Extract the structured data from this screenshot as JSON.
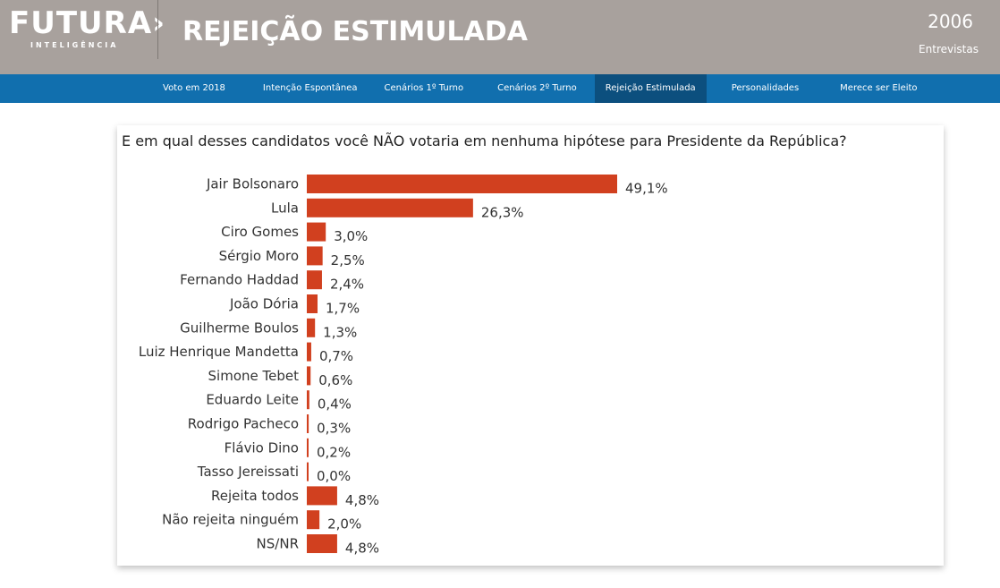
{
  "header": {
    "logo_text": "FUTURA›",
    "logo_subtext": "INTELIGÊNCIA",
    "title": "REJEIÇÃO ESTIMULADA",
    "interview_count": "2006",
    "interview_label": "Entrevistas"
  },
  "nav": {
    "items": [
      {
        "label": "Voto em 2018"
      },
      {
        "label": "Intenção Espontânea"
      },
      {
        "label": "Cenários 1º Turno"
      },
      {
        "label": "Cenários 2º Turno"
      },
      {
        "label": "Rejeição Estimulada",
        "active": true
      },
      {
        "label": "Personalidades"
      },
      {
        "label": "Merece ser Eleito"
      }
    ]
  },
  "colors": {
    "header_bg": "#a8a19d",
    "nav_bg": "#116fae",
    "nav_active_bg": "#0c4f7e",
    "bar": "#d1401f"
  },
  "chart_data": {
    "type": "bar",
    "orientation": "horizontal",
    "title": "E em qual desses candidatos você NÃO votaria em nenhuma hipótese para Presidente da República?",
    "categories": [
      "Jair Bolsonaro",
      "Lula",
      "Ciro Gomes",
      "Sérgio Moro",
      "Fernando Haddad",
      "João Dória",
      "Guilherme Boulos",
      "Luiz Henrique Mandetta",
      "Simone Tebet",
      "Eduardo Leite",
      "Rodrigo Pacheco",
      "Flávio Dino",
      "Tasso Jereissati",
      "Rejeita todos",
      "Não rejeita ninguém",
      "NS/NR"
    ],
    "values": [
      49.1,
      26.3,
      3.0,
      2.5,
      2.4,
      1.7,
      1.3,
      0.7,
      0.6,
      0.4,
      0.3,
      0.2,
      0.0,
      4.8,
      2.0,
      4.8
    ],
    "value_labels": [
      "49,1%",
      "26,3%",
      "3,0%",
      "2,5%",
      "2,4%",
      "1,7%",
      "1,3%",
      "0,7%",
      "0,6%",
      "0,4%",
      "0,3%",
      "0,2%",
      "0,0%",
      "4,8%",
      "2,0%",
      "4,8%"
    ],
    "grid": false,
    "legend": "none"
  }
}
